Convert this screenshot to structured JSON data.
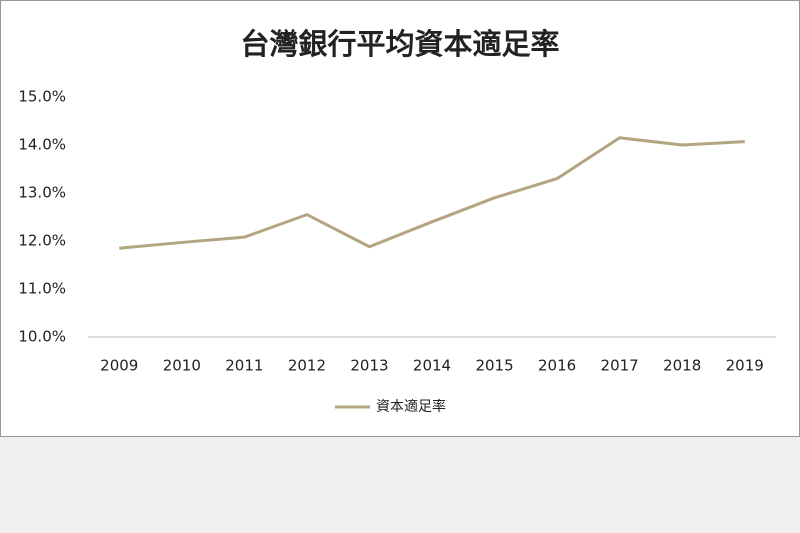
{
  "chart_data": {
    "type": "line",
    "title": "台灣銀行平均資本適足率",
    "categories": [
      "2009",
      "2010",
      "2011",
      "2012",
      "2013",
      "2014",
      "2015",
      "2016",
      "2017",
      "2018",
      "2019"
    ],
    "series": [
      {
        "name": "資本適足率",
        "color": "#b3a57f",
        "values": [
          11.85,
          11.97,
          12.08,
          12.55,
          11.88,
          12.4,
          12.9,
          13.3,
          14.15,
          14.0,
          14.07
        ]
      }
    ],
    "ylim": [
      10,
      15
    ],
    "yticks": [
      {
        "value": 10,
        "label": "10.0%"
      },
      {
        "value": 11,
        "label": "11.0%"
      },
      {
        "value": 12,
        "label": "12.0%"
      },
      {
        "value": 13,
        "label": "13.0%"
      },
      {
        "value": 14,
        "label": "14.0%"
      },
      {
        "value": 15,
        "label": "15.0%"
      }
    ],
    "grid": false,
    "legend": "bottom"
  }
}
